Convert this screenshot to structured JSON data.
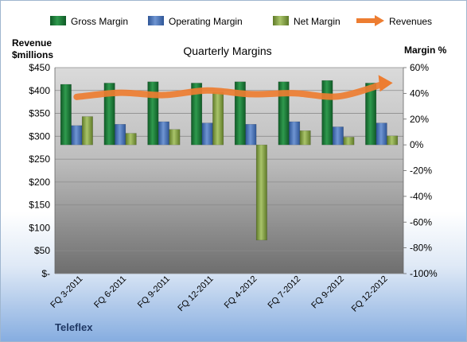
{
  "chart_data": {
    "type": "bar",
    "title": "Quarterly Margins",
    "company": "Teleflex",
    "y_left_label_line1": "Revenue",
    "y_left_label_line2": "$millions",
    "y_right_label": "Margin %",
    "categories": [
      "FQ 3-2011",
      "FQ 6-2011",
      "FQ 9-2011",
      "FQ 12-2011",
      "FQ 4-2012",
      "FQ 7-2012",
      "FQ 9-2012",
      "FQ 12-2012"
    ],
    "left_ticks": [
      "$450",
      "$400",
      "$350",
      "$300",
      "$250",
      "$200",
      "$150",
      "$100",
      "$50",
      "$-"
    ],
    "right_ticks": [
      "60%",
      "40%",
      "20%",
      "0%",
      "-20%",
      "-40%",
      "-60%",
      "-80%",
      "-100%"
    ],
    "left_axis": {
      "min": 0,
      "max": 450,
      "step": 50
    },
    "right_axis": {
      "min": -100,
      "max": 60,
      "step": 20
    },
    "series": [
      {
        "name": "Gross Margin",
        "axis": "right",
        "kind": "bar",
        "color": "#1e7a3c",
        "values": [
          47,
          48,
          49,
          48,
          49,
          49,
          50,
          48
        ]
      },
      {
        "name": "Operating Margin",
        "axis": "right",
        "kind": "bar",
        "color": "#4a72b8",
        "values": [
          15,
          16,
          18,
          17,
          16,
          18,
          14,
          17
        ]
      },
      {
        "name": "Net Margin",
        "axis": "right",
        "kind": "bar",
        "color": "#8aa84a",
        "values": [
          22,
          9,
          12,
          41,
          -74,
          11,
          6,
          7
        ]
      },
      {
        "name": "Revenues",
        "axis": "left",
        "kind": "line",
        "color": "#ed7d31",
        "values": [
          386,
          395,
          390,
          400,
          392,
          394,
          387,
          413
        ]
      }
    ],
    "legend_position": "top",
    "grid": true
  }
}
